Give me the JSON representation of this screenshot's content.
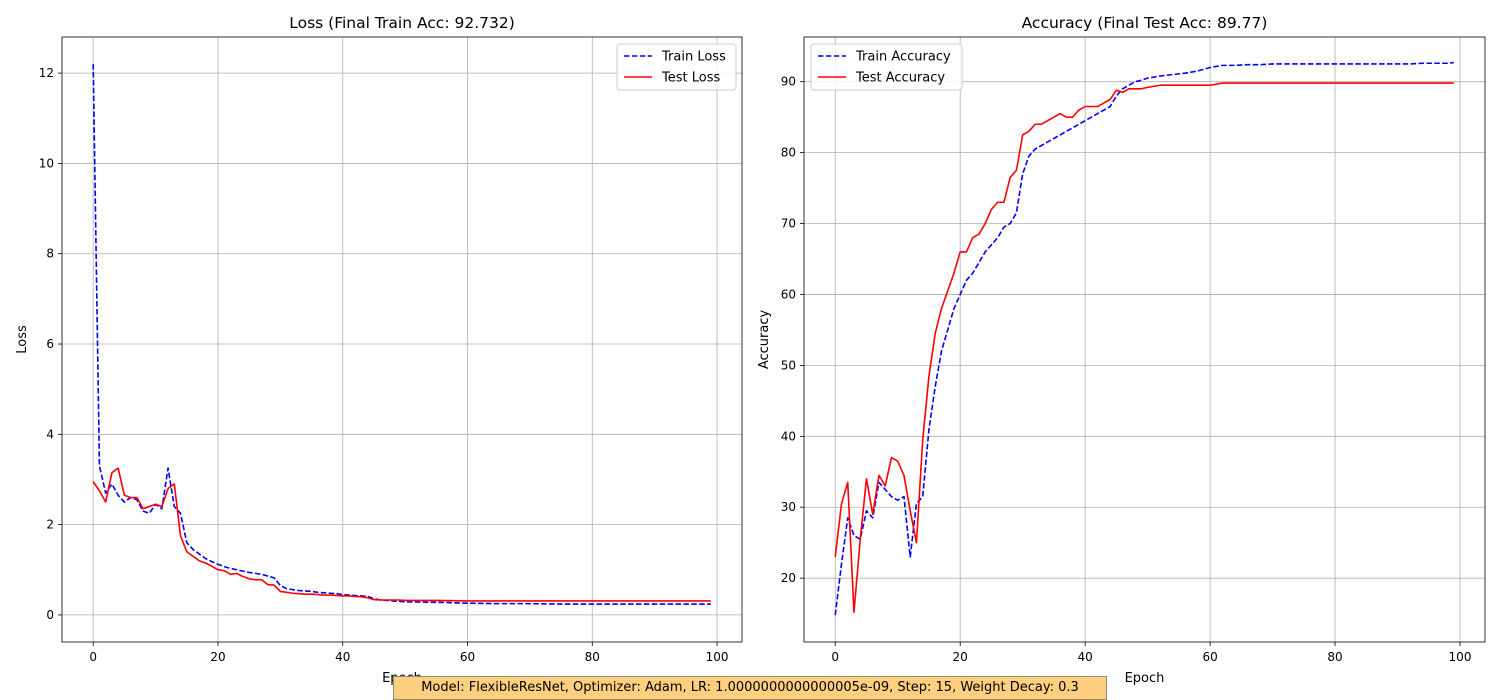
{
  "charts": [
    {
      "type": "line",
      "title": "Loss (Final Train Acc: 92.732)",
      "xlabel": "Epoch",
      "ylabel": "Loss",
      "xlim": [
        -5,
        104
      ],
      "ylim": [
        -0.6,
        12.8
      ],
      "xticks": [
        0,
        20,
        40,
        60,
        80,
        100
      ],
      "yticks": [
        0,
        2,
        4,
        6,
        8,
        10,
        12
      ],
      "grid": true,
      "legend_position": "upper-right",
      "series": [
        {
          "name": "Train Loss",
          "color": "#0000ff",
          "dash": "dashed",
          "x": [
            0,
            1,
            2,
            3,
            4,
            5,
            6,
            7,
            8,
            9,
            10,
            11,
            12,
            13,
            14,
            15,
            16,
            17,
            18,
            19,
            20,
            21,
            22,
            23,
            24,
            25,
            26,
            27,
            28,
            29,
            30,
            31,
            32,
            33,
            34,
            35,
            36,
            37,
            38,
            39,
            40,
            41,
            42,
            43,
            44,
            45,
            46,
            47,
            48,
            49,
            50,
            55,
            60,
            65,
            70,
            75,
            80,
            85,
            90,
            95,
            99
          ],
          "y": [
            12.2,
            3.3,
            2.7,
            2.9,
            2.65,
            2.5,
            2.6,
            2.55,
            2.3,
            2.25,
            2.45,
            2.35,
            3.25,
            2.4,
            2.25,
            1.6,
            1.45,
            1.35,
            1.25,
            1.18,
            1.12,
            1.07,
            1.03,
            1.0,
            0.97,
            0.94,
            0.92,
            0.9,
            0.86,
            0.82,
            0.65,
            0.58,
            0.56,
            0.54,
            0.53,
            0.52,
            0.5,
            0.49,
            0.48,
            0.47,
            0.45,
            0.44,
            0.43,
            0.42,
            0.41,
            0.36,
            0.33,
            0.32,
            0.31,
            0.3,
            0.29,
            0.28,
            0.26,
            0.25,
            0.25,
            0.24,
            0.24,
            0.24,
            0.24,
            0.24,
            0.24
          ]
        },
        {
          "name": "Test Loss",
          "color": "#ff0000",
          "dash": "solid",
          "x": [
            0,
            1,
            2,
            3,
            4,
            5,
            6,
            7,
            8,
            9,
            10,
            11,
            12,
            13,
            14,
            15,
            16,
            17,
            18,
            19,
            20,
            21,
            22,
            23,
            24,
            25,
            26,
            27,
            28,
            29,
            30,
            31,
            32,
            33,
            34,
            35,
            36,
            37,
            38,
            39,
            40,
            41,
            42,
            43,
            44,
            45,
            46,
            47,
            48,
            49,
            50,
            55,
            60,
            65,
            70,
            75,
            80,
            85,
            90,
            95,
            99
          ],
          "y": [
            2.95,
            2.75,
            2.5,
            3.15,
            3.25,
            2.65,
            2.6,
            2.6,
            2.35,
            2.4,
            2.45,
            2.4,
            2.8,
            2.9,
            1.75,
            1.4,
            1.3,
            1.2,
            1.15,
            1.08,
            1.0,
            0.98,
            0.9,
            0.92,
            0.85,
            0.8,
            0.78,
            0.78,
            0.67,
            0.66,
            0.52,
            0.5,
            0.48,
            0.47,
            0.46,
            0.46,
            0.45,
            0.44,
            0.44,
            0.43,
            0.42,
            0.42,
            0.41,
            0.4,
            0.38,
            0.34,
            0.33,
            0.33,
            0.33,
            0.33,
            0.32,
            0.32,
            0.31,
            0.31,
            0.31,
            0.31,
            0.31,
            0.31,
            0.31,
            0.31,
            0.31
          ]
        }
      ]
    },
    {
      "type": "line",
      "title": "Accuracy (Final Test Acc: 89.77)",
      "xlabel": "Epoch",
      "ylabel": "Accuracy",
      "xlim": [
        -5,
        104
      ],
      "ylim": [
        11,
        96.3
      ],
      "xticks": [
        0,
        20,
        40,
        60,
        80,
        100
      ],
      "yticks": [
        20,
        30,
        40,
        50,
        60,
        70,
        80,
        90
      ],
      "grid": true,
      "legend_position": "upper-left",
      "series": [
        {
          "name": "Train Accuracy",
          "color": "#0000ff",
          "dash": "dashed",
          "x": [
            0,
            1,
            2,
            3,
            4,
            5,
            6,
            7,
            8,
            9,
            10,
            11,
            12,
            13,
            14,
            15,
            16,
            17,
            18,
            19,
            20,
            21,
            22,
            23,
            24,
            25,
            26,
            27,
            28,
            29,
            30,
            31,
            32,
            33,
            34,
            35,
            36,
            37,
            38,
            39,
            40,
            41,
            42,
            43,
            44,
            45,
            46,
            47,
            48,
            49,
            50,
            52,
            54,
            56,
            58,
            60,
            62,
            64,
            66,
            68,
            70,
            72,
            74,
            76,
            78,
            80,
            82,
            84,
            86,
            88,
            90,
            92,
            94,
            96,
            98,
            99
          ],
          "y": [
            14.8,
            22.0,
            28.5,
            26.0,
            25.5,
            29.5,
            28.5,
            33.5,
            32.5,
            31.5,
            31.0,
            31.5,
            23.0,
            30.5,
            31.5,
            41.0,
            47.0,
            52.0,
            55.0,
            58.0,
            60.0,
            62.0,
            63.0,
            64.5,
            66.0,
            67.0,
            68.0,
            69.5,
            70.0,
            71.5,
            77.0,
            79.5,
            80.5,
            81.0,
            81.5,
            82.0,
            82.5,
            83.0,
            83.5,
            84.0,
            84.5,
            85.0,
            85.5,
            86.0,
            86.5,
            88.0,
            89.0,
            89.5,
            90.0,
            90.2,
            90.5,
            90.8,
            91.0,
            91.2,
            91.5,
            92.0,
            92.3,
            92.3,
            92.4,
            92.4,
            92.5,
            92.5,
            92.5,
            92.5,
            92.5,
            92.5,
            92.5,
            92.5,
            92.5,
            92.5,
            92.5,
            92.5,
            92.6,
            92.6,
            92.6,
            92.7
          ]
        },
        {
          "name": "Test Accuracy",
          "color": "#ff0000",
          "dash": "solid",
          "x": [
            0,
            1,
            2,
            3,
            4,
            5,
            6,
            7,
            8,
            9,
            10,
            11,
            12,
            13,
            14,
            15,
            16,
            17,
            18,
            19,
            20,
            21,
            22,
            23,
            24,
            25,
            26,
            27,
            28,
            29,
            30,
            31,
            32,
            33,
            34,
            35,
            36,
            37,
            38,
            39,
            40,
            41,
            42,
            43,
            44,
            45,
            46,
            47,
            48,
            49,
            50,
            52,
            54,
            56,
            58,
            60,
            62,
            64,
            66,
            68,
            70,
            72,
            74,
            76,
            78,
            80,
            82,
            84,
            86,
            88,
            90,
            92,
            94,
            96,
            98,
            99
          ],
          "y": [
            23.0,
            30.5,
            33.5,
            15.2,
            25.5,
            34.0,
            29.0,
            34.5,
            33.0,
            37.0,
            36.5,
            34.5,
            29.5,
            25.0,
            39.5,
            48.5,
            54.5,
            58.0,
            60.5,
            63.0,
            66.0,
            66.0,
            68.0,
            68.5,
            70.0,
            72.0,
            73.0,
            73.0,
            76.5,
            77.5,
            82.5,
            83.0,
            84.0,
            84.0,
            84.5,
            85.0,
            85.5,
            85.0,
            85.0,
            86.0,
            86.5,
            86.5,
            86.5,
            87.0,
            87.5,
            88.8,
            88.5,
            89.0,
            89.0,
            89.0,
            89.2,
            89.5,
            89.5,
            89.5,
            89.5,
            89.5,
            89.8,
            89.8,
            89.8,
            89.8,
            89.8,
            89.8,
            89.8,
            89.8,
            89.8,
            89.8,
            89.8,
            89.8,
            89.8,
            89.8,
            89.8,
            89.8,
            89.8,
            89.8,
            89.8,
            89.8
          ]
        }
      ]
    }
  ],
  "footer": {
    "text": "Model: FlexibleResNet, Optimizer: Adam, LR: 1.0000000000000005e-09, Step: 15, Weight Decay: 0.3",
    "background": "#fdcf7e"
  }
}
